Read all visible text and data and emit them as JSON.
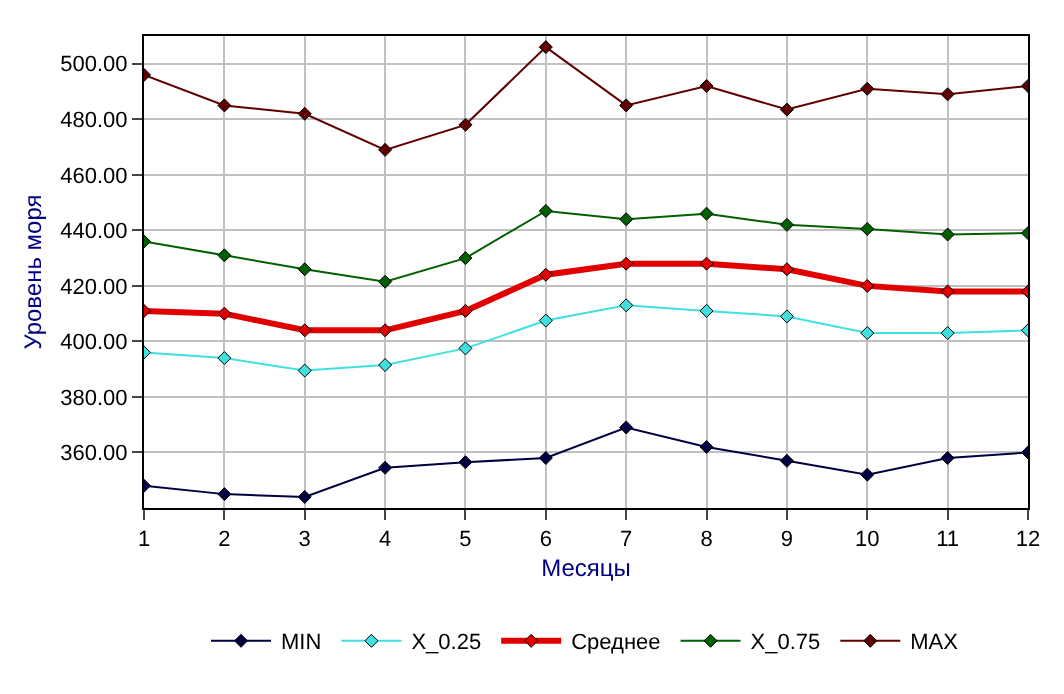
{
  "chart_data": {
    "type": "line",
    "xlabel": "Месяцы",
    "ylabel": "Уровень моря",
    "x": [
      1,
      2,
      3,
      4,
      5,
      6,
      7,
      8,
      9,
      10,
      11,
      12
    ],
    "series": [
      {
        "name": "MIN",
        "color": "#000040",
        "values": [
          348,
          345,
          344,
          354.5,
          356.5,
          358,
          369,
          362,
          357,
          352,
          358,
          360
        ]
      },
      {
        "name": "X_0.25",
        "color": "#40e0e0",
        "values": [
          396,
          394,
          389.5,
          391.5,
          397.5,
          407.5,
          413,
          411,
          409,
          403,
          403,
          404
        ]
      },
      {
        "name": "Среднее",
        "color": "#e00000",
        "values": [
          411,
          410,
          404,
          404,
          411,
          424,
          428,
          428,
          426,
          420,
          418,
          418
        ]
      },
      {
        "name": "X_0.75",
        "color": "#006000",
        "values": [
          436,
          431,
          426,
          421.5,
          430,
          447,
          444,
          446,
          442,
          440.5,
          438.5,
          439
        ]
      },
      {
        "name": "MAX",
        "color": "#600000",
        "values": [
          496,
          485,
          482,
          469,
          478,
          506,
          485,
          492,
          483.5,
          491,
          489,
          492
        ]
      }
    ],
    "xlim": [
      1,
      12
    ],
    "xticks": [
      1,
      2,
      3,
      4,
      5,
      6,
      7,
      8,
      9,
      10,
      11,
      12
    ],
    "ylim": [
      340,
      510
    ],
    "yticks": [
      {
        "value": 360,
        "label": "360.00"
      },
      {
        "value": 380,
        "label": "380.00"
      },
      {
        "value": 400,
        "label": "400.00"
      },
      {
        "value": 420,
        "label": "420.00"
      },
      {
        "value": 440,
        "label": "440.00"
      },
      {
        "value": 460,
        "label": "460.00"
      },
      {
        "value": 480,
        "label": "480.00"
      },
      {
        "value": 500,
        "label": "500.00"
      }
    ],
    "grid": true,
    "legend": "bottom",
    "marker": "diamond",
    "line_style": "solid"
  }
}
